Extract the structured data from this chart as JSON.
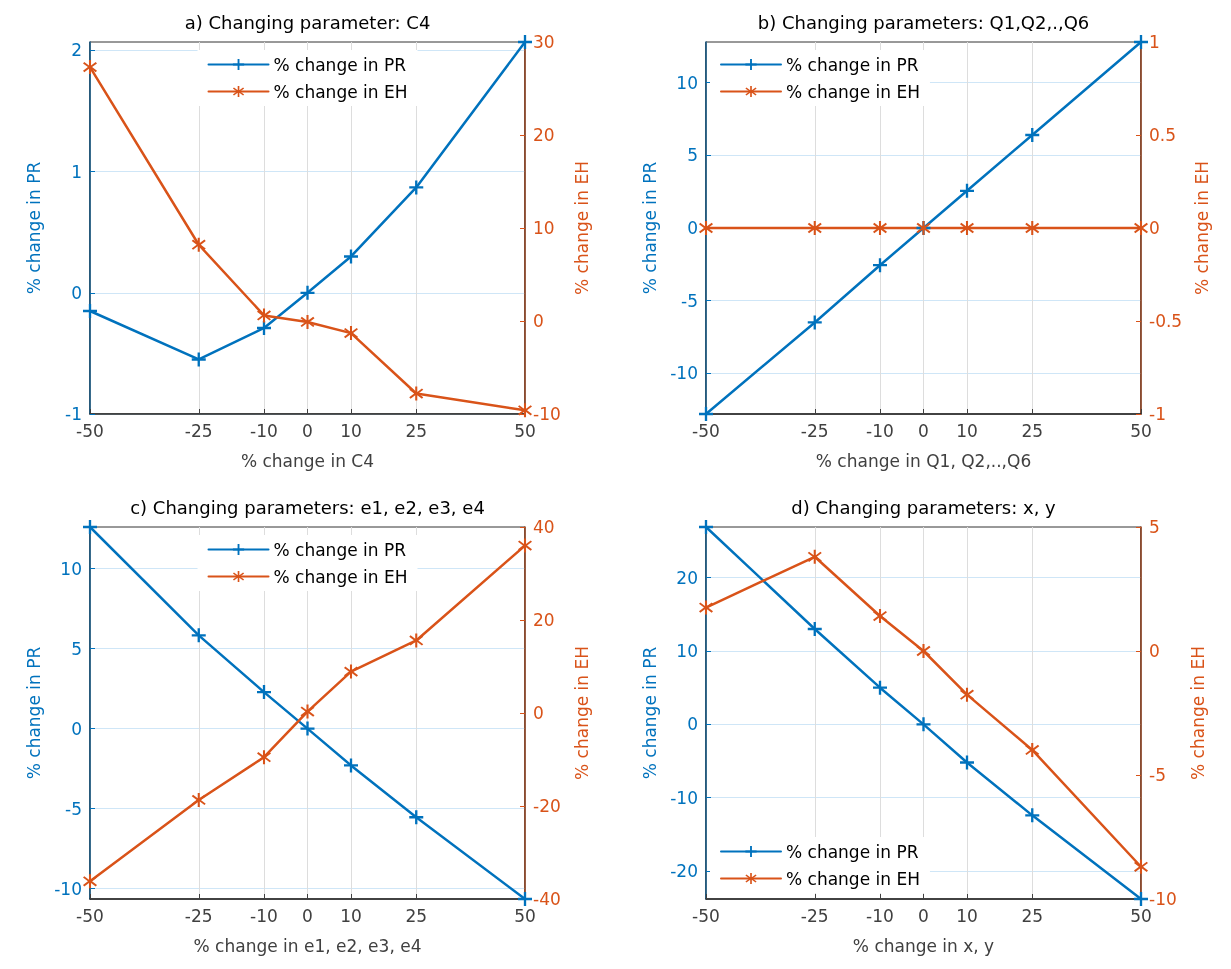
{
  "chart_data": [
    {
      "type": "line",
      "title": "a) Changing parameter: C4",
      "xlabel": "% change in C4",
      "ylabel": "% change in PR",
      "y2label": "% change in EH",
      "x": [
        -50,
        -25,
        -10,
        0,
        10,
        25,
        50
      ],
      "xlim": [
        -50,
        50
      ],
      "xticks": [
        -50,
        -25,
        -10,
        0,
        10,
        25,
        50
      ],
      "ylim": [
        -1,
        2.07
      ],
      "yticks": [
        -1,
        0,
        1,
        2
      ],
      "y2lim": [
        -10,
        30
      ],
      "y2ticks": [
        -10,
        0,
        10,
        20,
        30
      ],
      "grid": true,
      "legend": "top",
      "series": [
        {
          "name": "% change in PR",
          "color": "#0072bd",
          "marker": "cross",
          "values": [
            -0.15,
            -0.55,
            -0.29,
            0,
            0.3,
            0.87,
            2.07
          ]
        },
        {
          "name": "% change in EH",
          "color": "#d95319",
          "marker": "star",
          "axis": "y2",
          "values": [
            27.3,
            8.2,
            0.6,
            -0.1,
            -1.3,
            -7.8,
            -9.6
          ]
        }
      ]
    },
    {
      "type": "line",
      "title": "b) Changing parameters: Q1,Q2,.,Q6",
      "xlabel": "% change in Q1, Q2,..,Q6",
      "ylabel": "% change in PR",
      "y2label": "% change in EH",
      "x": [
        -50,
        -25,
        -10,
        0,
        10,
        25,
        50
      ],
      "xlim": [
        -50,
        50
      ],
      "xticks": [
        -50,
        -25,
        -10,
        0,
        10,
        25,
        50
      ],
      "ylim": [
        -12.8,
        12.8
      ],
      "yticks": [
        -10,
        -5,
        0,
        5,
        10
      ],
      "y2lim": [
        -1,
        1
      ],
      "y2ticks": [
        -1,
        -0.5,
        0,
        0.5,
        1
      ],
      "grid": true,
      "legend": "top left",
      "series": [
        {
          "name": "% change in PR",
          "color": "#0072bd",
          "marker": "cross",
          "values": [
            -12.8,
            -6.5,
            -2.56,
            0,
            2.56,
            6.4,
            12.8
          ]
        },
        {
          "name": "% change in EH",
          "color": "#d95319",
          "marker": "star",
          "axis": "y2",
          "values": [
            0,
            0,
            0,
            0,
            0,
            0,
            0
          ]
        }
      ]
    },
    {
      "type": "line",
      "title": "c) Changing parameters: e1, e2, e3, e4",
      "xlabel": "% change in e1, e2, e3, e4",
      "ylabel": "% change in PR",
      "y2label": "% change in EH",
      "x": [
        -50,
        -25,
        -10,
        0,
        10,
        25,
        50
      ],
      "xlim": [
        -50,
        50
      ],
      "xticks": [
        -50,
        -25,
        -10,
        0,
        10,
        25,
        50
      ],
      "ylim": [
        -10.65,
        12.6
      ],
      "yticks": [
        -10,
        -5,
        0,
        5,
        10
      ],
      "y2lim": [
        -40,
        40
      ],
      "y2ticks": [
        -40,
        -20,
        0,
        20,
        40
      ],
      "grid": true,
      "legend": "top",
      "series": [
        {
          "name": "% change in PR",
          "color": "#0072bd",
          "marker": "cross",
          "values": [
            12.6,
            5.83,
            2.28,
            0,
            -2.3,
            -5.54,
            -10.65
          ]
        },
        {
          "name": "% change in EH",
          "color": "#d95319",
          "marker": "star",
          "axis": "y2",
          "values": [
            -36.2,
            -18.7,
            -9.5,
            0.3,
            8.9,
            15.6,
            36
          ]
        }
      ]
    },
    {
      "type": "line",
      "title": "d) Changing parameters: x, y",
      "xlabel": "% change in x, y",
      "ylabel": "% change in PR",
      "y2label": "% change in EH",
      "x": [
        -50,
        -25,
        -10,
        0,
        10,
        25,
        50
      ],
      "xlim": [
        -50,
        50
      ],
      "xticks": [
        -50,
        -25,
        -10,
        0,
        10,
        25,
        50
      ],
      "ylim": [
        -23.8,
        26.9
      ],
      "yticks": [
        -20,
        -10,
        0,
        10,
        20
      ],
      "y2lim": [
        -10,
        5
      ],
      "y2ticks": [
        -10,
        -5,
        0,
        5
      ],
      "grid": true,
      "legend": "bottom left",
      "series": [
        {
          "name": "% change in PR",
          "color": "#0072bd",
          "marker": "cross",
          "values": [
            26.9,
            13,
            5,
            0,
            -5.2,
            -12.4,
            -23.8
          ]
        },
        {
          "name": "% change in EH",
          "color": "#d95319",
          "marker": "star",
          "axis": "y2",
          "values": [
            1.75,
            3.8,
            1.41,
            0,
            -1.76,
            -3.99,
            -8.7
          ]
        }
      ]
    }
  ]
}
